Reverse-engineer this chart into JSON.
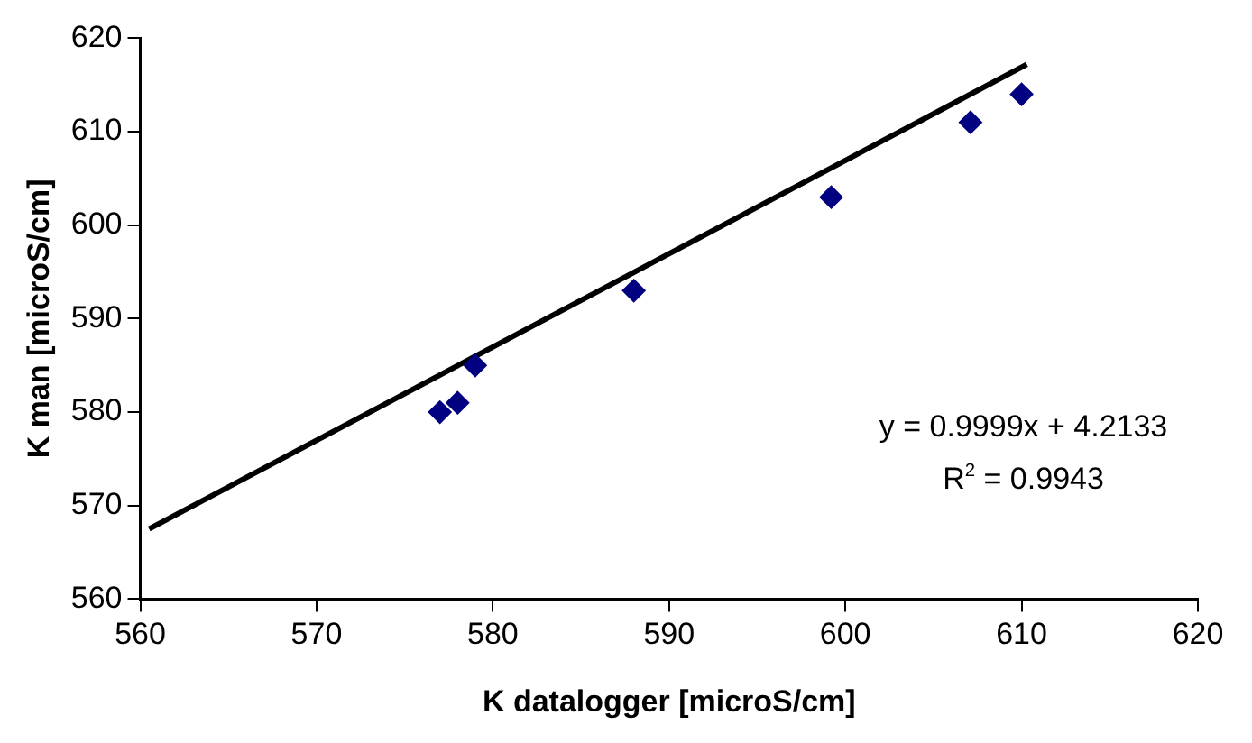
{
  "chart_data": {
    "type": "scatter",
    "xlabel": "K datalogger [microS/cm]",
    "ylabel": "K man [microS/cm]",
    "xlim": [
      560,
      620
    ],
    "xticks": [
      560,
      570,
      580,
      590,
      600,
      610,
      620
    ],
    "ylim": [
      560,
      620
    ],
    "yticks": [
      560,
      570,
      580,
      590,
      600,
      610,
      620
    ],
    "grid": false,
    "legend": false,
    "annotations": [
      "y = 0.9999x + 4.2133",
      "R$^{2}$ = 0.9943"
    ],
    "series": [
      {
        "marker": "diamond",
        "color": "#000080",
        "x": [
          577,
          578,
          579,
          588,
          599.2,
          607.1,
          610
        ],
        "values": [
          580,
          581,
          585,
          593,
          603,
          611,
          614
        ]
      },
      {
        "type": "line",
        "color": "#000000",
        "x": [
          560.5,
          610.3
        ],
        "values": [
          567.5,
          617.2
        ]
      }
    ]
  }
}
